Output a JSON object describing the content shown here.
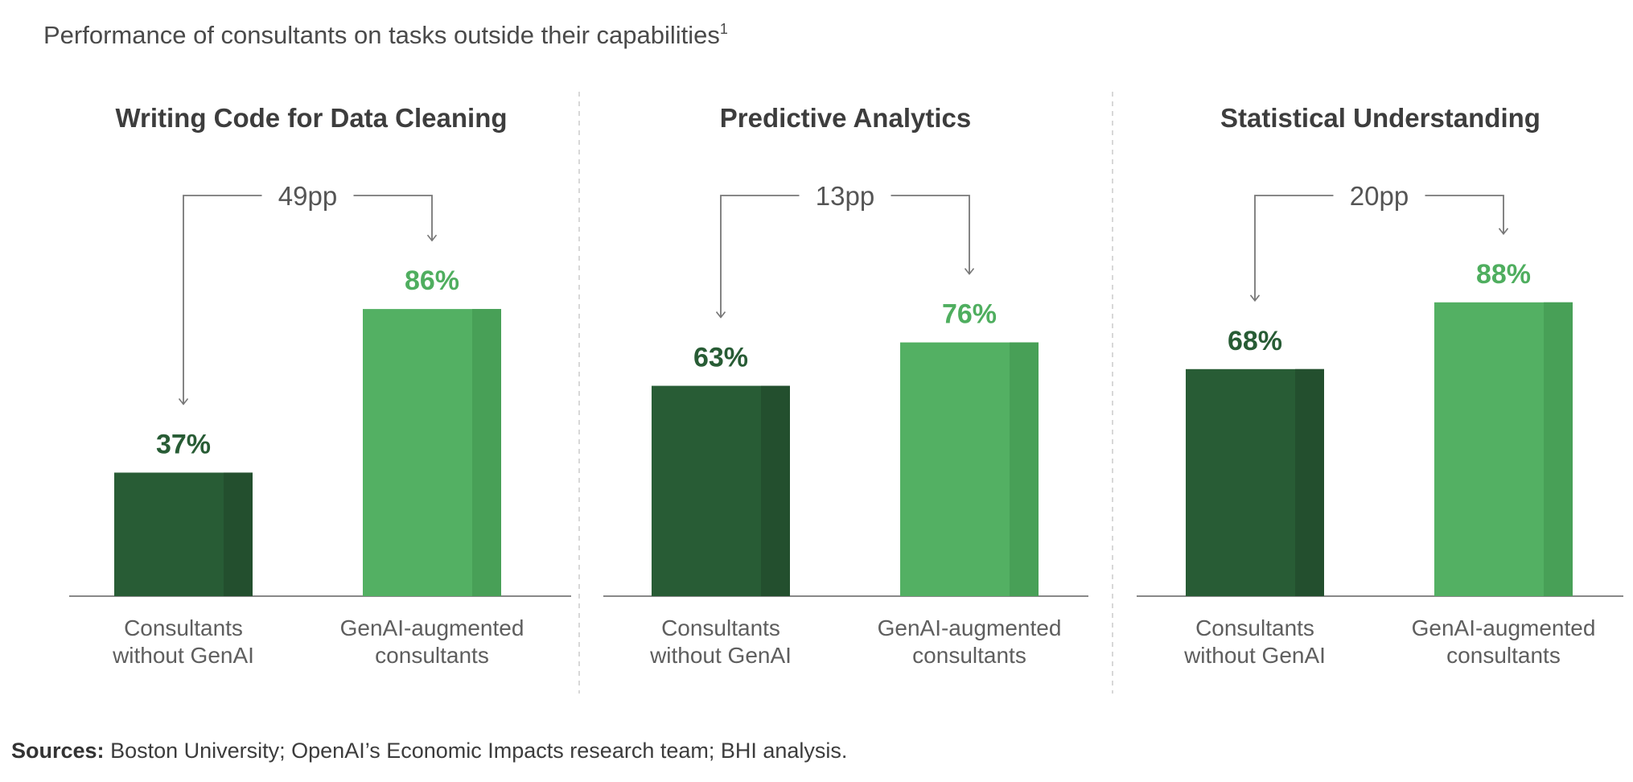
{
  "title": "Performance of consultants on tasks outside their capabilities",
  "title_footnote": "1",
  "sources_label": "Sources:",
  "sources_text": "Boston University; OpenAI’s Economic Impacts research team; BHI analysis.",
  "chart_data": {
    "type": "bar",
    "unit": "%",
    "ylim": [
      0,
      100
    ],
    "grid": false,
    "categories": [
      [
        "Consultants",
        "without GenAI"
      ],
      [
        "GenAI-augmented",
        "consultants"
      ]
    ],
    "colors": {
      "without": "#285c35",
      "without_shade": "#234f2e",
      "with": "#53b063",
      "with_shade": "#48a057",
      "value_without": "#285c35",
      "value_with": "#4fae5f",
      "axis": "#888888",
      "divider": "#cccccc",
      "bracket": "#777777"
    },
    "panels": [
      {
        "title": "Writing Code for Data Cleaning",
        "values": [
          37,
          86
        ],
        "labels": [
          "37%",
          "86%"
        ],
        "delta": "49pp"
      },
      {
        "title": "Predictive Analytics",
        "values": [
          63,
          76
        ],
        "labels": [
          "63%",
          "76%"
        ],
        "delta": "13pp"
      },
      {
        "title": "Statistical Understanding",
        "values": [
          68,
          88
        ],
        "labels": [
          "68%",
          "88%"
        ],
        "delta": "20pp"
      }
    ]
  }
}
